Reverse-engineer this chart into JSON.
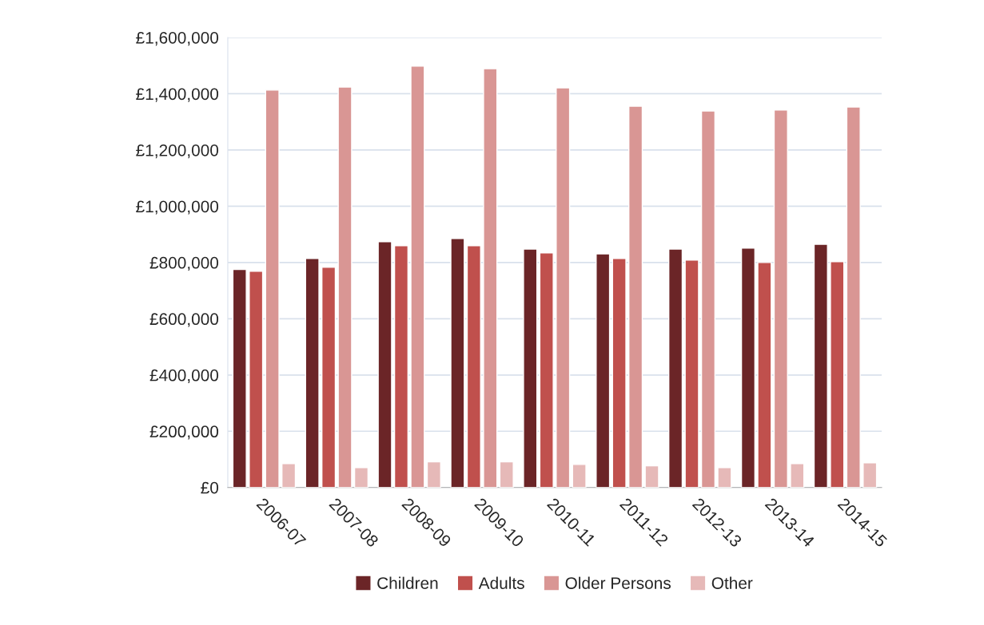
{
  "chart_data": {
    "type": "bar",
    "categories": [
      "2006-07",
      "2007-08",
      "2008-09",
      "2009-10",
      "2010-11",
      "2011-12",
      "2012-13",
      "2013-14",
      "2014-15"
    ],
    "series": [
      {
        "name": "Children",
        "color": "#6b2527",
        "values": [
          775000,
          814000,
          874000,
          885000,
          848000,
          831000,
          848000,
          851000,
          865000
        ]
      },
      {
        "name": "Adults",
        "color": "#c0504d",
        "values": [
          769000,
          783000,
          860000,
          860000,
          834000,
          814000,
          809000,
          800000,
          803000
        ]
      },
      {
        "name": "Older Persons",
        "color": "#d99694",
        "values": [
          1413000,
          1424000,
          1498000,
          1489000,
          1421000,
          1356000,
          1339000,
          1342000,
          1353000
        ]
      },
      {
        "name": "Other",
        "color": "#e6b9b8",
        "values": [
          85000,
          71000,
          91000,
          91000,
          82000,
          77000,
          71000,
          85000,
          88000
        ]
      }
    ],
    "ylim": [
      0,
      1600000
    ],
    "yticks": [
      {
        "value": 0,
        "label": "£0"
      },
      {
        "value": 200000,
        "label": "£200,000"
      },
      {
        "value": 400000,
        "label": "£400,000"
      },
      {
        "value": 600000,
        "label": "£600,000"
      },
      {
        "value": 800000,
        "label": "£800,000"
      },
      {
        "value": 1000000,
        "label": "£1,000,000"
      },
      {
        "value": 1200000,
        "label": "£1,200,000"
      },
      {
        "value": 1400000,
        "label": "£1,400,000"
      },
      {
        "value": 1600000,
        "label": "£1,600,000"
      }
    ],
    "grid": "y",
    "legend": "bottom"
  }
}
